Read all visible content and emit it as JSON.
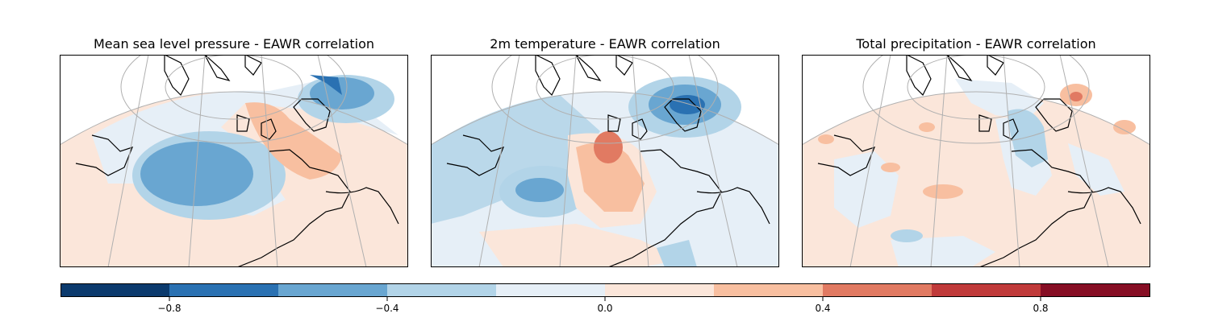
{
  "panels": [
    {
      "title": "Mean sea level pressure - EAWR correlation"
    },
    {
      "title": "2m temperature - EAWR correlation"
    },
    {
      "title": "Total precipitation - EAWR correlation"
    }
  ],
  "colorbar": {
    "vmin": -1.0,
    "vmax": 1.0,
    "bins": [
      {
        "lo": -1.0,
        "hi": -0.8,
        "color": "#0b3a6d"
      },
      {
        "lo": -0.8,
        "hi": -0.6,
        "color": "#2a71b2"
      },
      {
        "lo": -0.6,
        "hi": -0.4,
        "color": "#69a6d1"
      },
      {
        "lo": -0.4,
        "hi": -0.2,
        "color": "#b2d4e8"
      },
      {
        "lo": -0.2,
        "hi": 0.0,
        "color": "#e6eff7"
      },
      {
        "lo": 0.0,
        "hi": 0.2,
        "color": "#fbe6da"
      },
      {
        "lo": 0.2,
        "hi": 0.4,
        "color": "#f8bfa0"
      },
      {
        "lo": 0.4,
        "hi": 0.6,
        "color": "#e17a62"
      },
      {
        "lo": 0.6,
        "hi": 0.8,
        "color": "#c03a3a"
      },
      {
        "lo": 0.8,
        "hi": 1.0,
        "color": "#860e24"
      }
    ],
    "ticks": [
      {
        "value": -0.8,
        "label": "−0.8"
      },
      {
        "value": -0.4,
        "label": "−0.4"
      },
      {
        "value": 0.0,
        "label": "0.0"
      },
      {
        "value": 0.4,
        "label": "0.4"
      },
      {
        "value": 0.8,
        "label": "0.8"
      }
    ]
  },
  "colors": {
    "coastline": "#000000",
    "gridline": "#b0b0b0",
    "frame": "#000000"
  }
}
